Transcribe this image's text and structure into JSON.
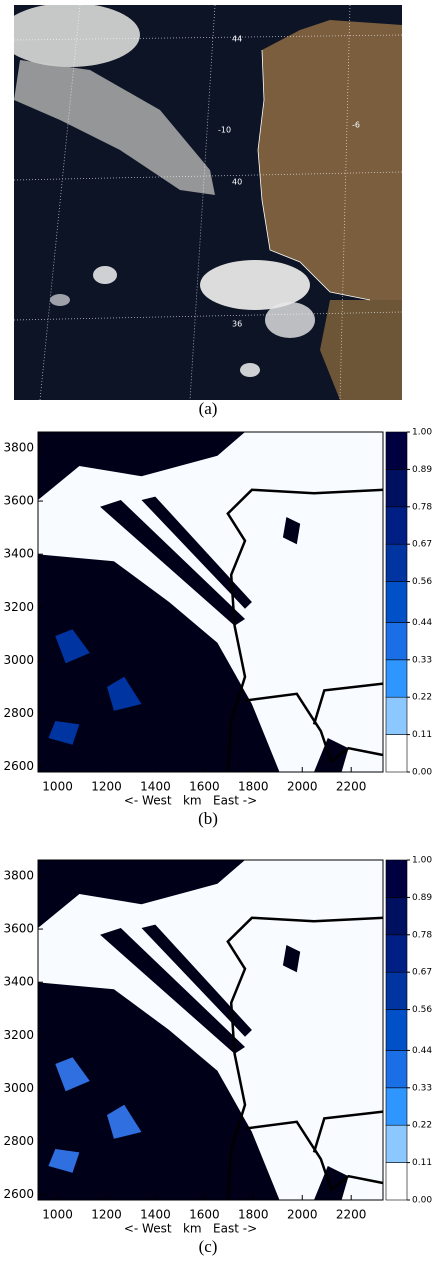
{
  "panels": [
    {
      "caption": "(a)",
      "labels": [
        "44",
        "-10",
        "-6",
        "40",
        "36"
      ]
    },
    {
      "caption": "(b)",
      "xlabel": "<- West   km   East ->",
      "xlim": [
        920,
        2330
      ],
      "xticks": [
        1000,
        1200,
        1400,
        1600,
        1800,
        2000,
        2200
      ],
      "ylim": [
        2580,
        3860
      ],
      "yticks": [
        2600,
        2800,
        3000,
        3200,
        3400,
        3600,
        3800
      ],
      "colorbar": {
        "lim": [
          0,
          1
        ],
        "ticks": [
          {
            "value": 0,
            "label": "0.00"
          },
          {
            "value": 0.11,
            "label": "0.11"
          },
          {
            "value": 0.22,
            "label": "0.22"
          },
          {
            "value": 0.33,
            "label": "0.33"
          },
          {
            "value": 0.44,
            "label": "0.44"
          },
          {
            "value": 0.56,
            "label": "0.56"
          },
          {
            "value": 0.67,
            "label": "0.67"
          },
          {
            "value": 0.78,
            "label": "0.78"
          },
          {
            "value": 0.89,
            "label": "0.89"
          },
          {
            "value": 1,
            "label": "1.00"
          }
        ],
        "colors": [
          "#ffffff",
          "#8cc8ff",
          "#2f96ff",
          "#1a6fe6",
          "#0050c8",
          "#0034a0",
          "#001f84",
          "#001060",
          "#000040"
        ]
      }
    },
    {
      "caption": "(c)",
      "xlabel": "<- West   km   East ->",
      "xlim": [
        920,
        2330
      ],
      "xticks": [
        1000,
        1200,
        1400,
        1600,
        1800,
        2000,
        2200
      ],
      "ylim": [
        2580,
        3860
      ],
      "yticks": [
        2600,
        2800,
        3000,
        3200,
        3400,
        3600,
        3800
      ],
      "colorbar": {
        "lim": [
          0,
          1
        ],
        "ticks": [
          {
            "value": 0,
            "label": "0.00"
          },
          {
            "value": 0.11,
            "label": "0.11"
          },
          {
            "value": 0.22,
            "label": "0.22"
          },
          {
            "value": 0.33,
            "label": "0.33"
          },
          {
            "value": 0.44,
            "label": "0.44"
          },
          {
            "value": 0.56,
            "label": "0.56"
          },
          {
            "value": 0.67,
            "label": "0.67"
          },
          {
            "value": 0.78,
            "label": "0.78"
          },
          {
            "value": 0.89,
            "label": "0.89"
          },
          {
            "value": 1,
            "label": "1.00"
          }
        ],
        "colors": [
          "#ffffff",
          "#8cc8ff",
          "#2f96ff",
          "#1a6fe6",
          "#0050c8",
          "#0034a0",
          "#001f84",
          "#001060",
          "#000040"
        ]
      }
    }
  ]
}
